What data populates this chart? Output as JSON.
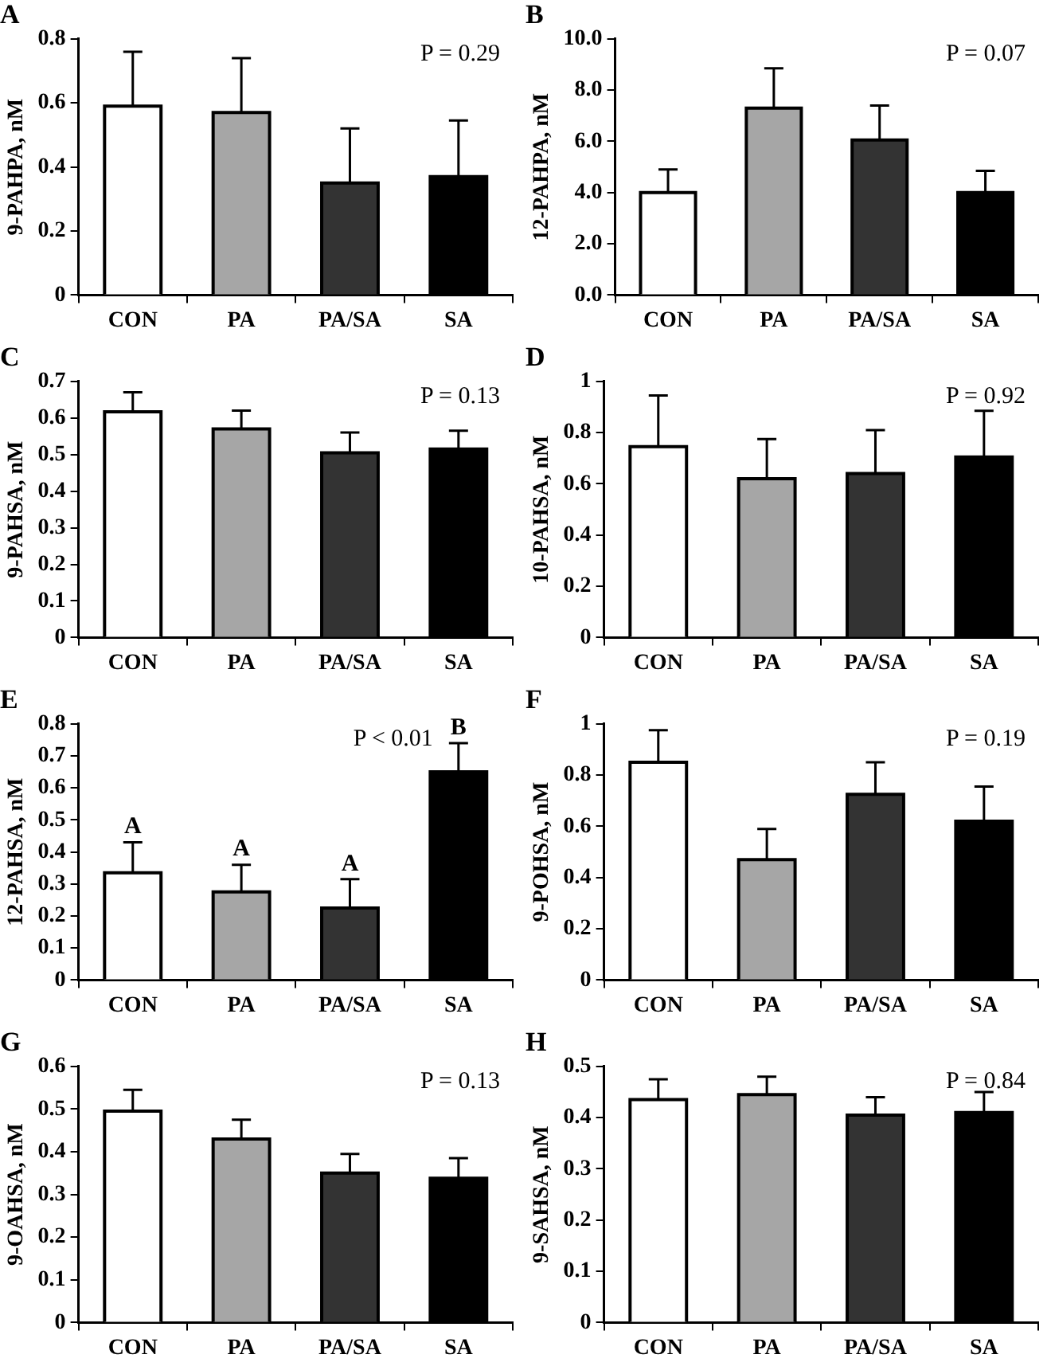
{
  "chart_data": [
    {
      "type": "bar",
      "title": "A",
      "ylabel": "9-PAHPA, nM",
      "categories": [
        "CON",
        "PA",
        "PA/SA",
        "SA"
      ],
      "values": [
        0.59,
        0.57,
        0.35,
        0.37
      ],
      "errors": [
        0.17,
        0.17,
        0.17,
        0.175
      ],
      "colors": [
        "#ffffff",
        "#a6a6a6",
        "#333333",
        "#000000"
      ],
      "ylim": [
        0,
        0.8
      ],
      "yticks": [
        0,
        0.2,
        0.4,
        0.6,
        0.8
      ],
      "annotations": [
        "P = 0.29"
      ]
    },
    {
      "type": "bar",
      "title": "B",
      "ylabel": "12-PAHPA, nM",
      "categories": [
        "CON",
        "PA",
        "PA/SA",
        "SA"
      ],
      "values": [
        4.0,
        7.3,
        6.05,
        4.0
      ],
      "errors": [
        0.9,
        1.55,
        1.35,
        0.85
      ],
      "colors": [
        "#ffffff",
        "#a6a6a6",
        "#333333",
        "#000000"
      ],
      "ylim": [
        0,
        10
      ],
      "yticks": [
        {
          "value": 0,
          "label": "0.0"
        },
        {
          "value": 2,
          "label": "2.0"
        },
        {
          "value": 4,
          "label": "4.0"
        },
        {
          "value": 6,
          "label": "6.0"
        },
        {
          "value": 8,
          "label": "8.0"
        },
        {
          "value": 10,
          "label": "10.0"
        }
      ],
      "annotations": [
        "P = 0.07"
      ]
    },
    {
      "type": "bar",
      "title": "C",
      "ylabel": "9-PAHSA, nM",
      "categories": [
        "CON",
        "PA",
        "PA/SA",
        "SA"
      ],
      "values": [
        0.617,
        0.57,
        0.505,
        0.515
      ],
      "errors": [
        0.053,
        0.05,
        0.055,
        0.05
      ],
      "colors": [
        "#ffffff",
        "#a6a6a6",
        "#333333",
        "#000000"
      ],
      "ylim": [
        0,
        0.7
      ],
      "yticks": [
        0,
        0.1,
        0.2,
        0.3,
        0.4,
        0.5,
        0.6,
        0.7
      ],
      "annotations": [
        "P = 0.13"
      ]
    },
    {
      "type": "bar",
      "title": "D",
      "ylabel": "10-PAHSA, nM",
      "categories": [
        "CON",
        "PA",
        "PA/SA",
        "SA"
      ],
      "values": [
        0.745,
        0.62,
        0.64,
        0.705
      ],
      "errors": [
        0.2,
        0.155,
        0.17,
        0.18
      ],
      "colors": [
        "#ffffff",
        "#a6a6a6",
        "#333333",
        "#000000"
      ],
      "ylim": [
        0,
        1
      ],
      "yticks": [
        0,
        0.2,
        0.4,
        0.6,
        0.8,
        1
      ],
      "annotations": [
        "P = 0.92"
      ]
    },
    {
      "type": "bar",
      "title": "E",
      "ylabel": "12-PAHSA, nM",
      "categories": [
        "CON",
        "PA",
        "PA/SA",
        "SA"
      ],
      "values": [
        0.335,
        0.275,
        0.225,
        0.65
      ],
      "errors": [
        0.095,
        0.085,
        0.09,
        0.09
      ],
      "colors": [
        "#ffffff",
        "#a6a6a6",
        "#333333",
        "#000000"
      ],
      "ylim": [
        0,
        0.8
      ],
      "yticks": [
        0,
        0.1,
        0.2,
        0.3,
        0.4,
        0.5,
        0.6,
        0.7,
        0.8
      ],
      "annotations": [
        "P < 0.01",
        {
          "text": "A",
          "x": "CON",
          "y": 0.43
        },
        {
          "text": "A",
          "x": "PA",
          "y": 0.36
        },
        {
          "text": "A",
          "x": "PA/SA",
          "y": 0.315
        },
        {
          "text": "B",
          "x": "SA",
          "y": 0.74
        }
      ]
    },
    {
      "type": "bar",
      "title": "F",
      "ylabel": "9-POHSA, nM",
      "categories": [
        "CON",
        "PA",
        "PA/SA",
        "SA"
      ],
      "values": [
        0.85,
        0.47,
        0.725,
        0.62
      ],
      "errors": [
        0.125,
        0.12,
        0.125,
        0.135
      ],
      "colors": [
        "#ffffff",
        "#a6a6a6",
        "#333333",
        "#000000"
      ],
      "ylim": [
        0,
        1
      ],
      "yticks": [
        0,
        0.2,
        0.4,
        0.6,
        0.8,
        1
      ],
      "annotations": [
        "P = 0.19"
      ]
    },
    {
      "type": "bar",
      "title": "G",
      "ylabel": "9-OAHSA, nM",
      "categories": [
        "CON",
        "PA",
        "PA/SA",
        "SA"
      ],
      "values": [
        0.495,
        0.43,
        0.35,
        0.338
      ],
      "errors": [
        0.05,
        0.045,
        0.045,
        0.047
      ],
      "colors": [
        "#ffffff",
        "#a6a6a6",
        "#333333",
        "#000000"
      ],
      "ylim": [
        0,
        0.6
      ],
      "yticks": [
        0,
        0.1,
        0.2,
        0.3,
        0.4,
        0.5,
        0.6
      ],
      "annotations": [
        "P = 0.13"
      ]
    },
    {
      "type": "bar",
      "title": "H",
      "ylabel": "9-SAHSA, nM",
      "categories": [
        "CON",
        "PA",
        "PA/SA",
        "SA"
      ],
      "values": [
        0.435,
        0.445,
        0.405,
        0.41
      ],
      "errors": [
        0.04,
        0.035,
        0.035,
        0.04
      ],
      "colors": [
        "#ffffff",
        "#a6a6a6",
        "#333333",
        "#000000"
      ],
      "ylim": [
        0,
        0.5
      ],
      "yticks": [
        0,
        0.1,
        0.2,
        0.3,
        0.4,
        0.5
      ],
      "annotations": [
        "P = 0.84"
      ]
    }
  ]
}
